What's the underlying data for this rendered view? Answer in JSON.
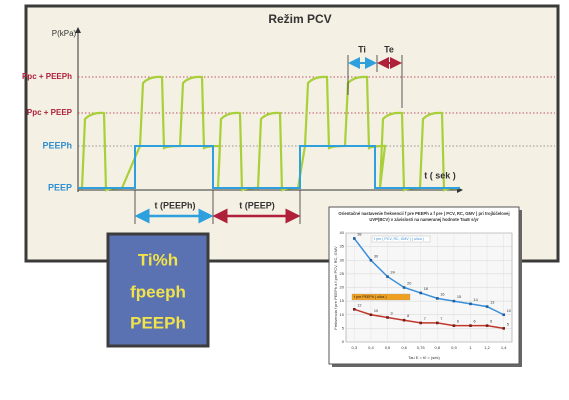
{
  "title": "Režim PCV",
  "y_axis_label": "P(kPa)",
  "levels": [
    "Ppc + PEEPh",
    "Ppc + PEEP",
    "PEEPh",
    "PEEP"
  ],
  "x_axis_label": "t ( sek )",
  "ti_label": "Ti",
  "te_label": "Te",
  "phase_labels": [
    "t (PEEPh)",
    "t (PEEP)"
  ],
  "parameters": [
    "Ti%h",
    "fpeeph",
    "PEEPh"
  ],
  "inset_chart": {
    "type": "line",
    "title_lines": [
      "Orientačné nastavenie frekvencií f pre PEEPh a f pre ( PCV, RC, GMV ) pri trojlúčelovej",
      "UVP(BCV) v závislosti na nameranej hodnote TauE s/yr"
    ],
    "x_label": "Tau E = t0 = (sek)",
    "y_label": "Frekvencia f pre PEEPh a f pre PCV, RC, GMV",
    "categories": [
      "0,3",
      "0,4",
      "0,5",
      "0,6",
      "0,75",
      "0,8",
      "0,9",
      "1",
      "1,2",
      "1,4"
    ],
    "series": [
      {
        "name": "f pre ( PCV, RC, GMV ) ( ulica )",
        "color": "#3a8fd8",
        "values": [
          38,
          30,
          24,
          20,
          18,
          16,
          15,
          14,
          13,
          10
        ]
      },
      {
        "name": "f pre PEEPh ( ulica )",
        "color": "#c0392b",
        "values": [
          12,
          10,
          9,
          8,
          7,
          7,
          6,
          6,
          6,
          5
        ]
      }
    ],
    "ylim": [
      0,
      40
    ],
    "yticks": [
      0,
      5,
      10,
      15,
      20,
      25,
      30,
      35,
      40
    ],
    "grid": true
  }
}
